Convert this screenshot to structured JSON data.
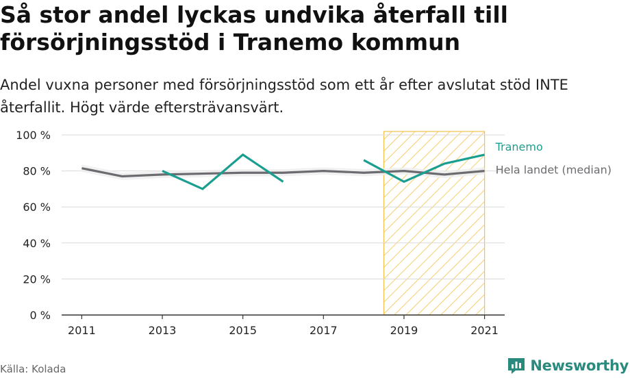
{
  "title": "Så stor andel lyckas undvika återfall till försörjningsstöd i Tranemo kommun",
  "subtitle": "Andel vuxna personer med försörjningsstöd som ett år efter avslutat stöd INTE återfallit. Högt värde eftersträvansvärt.",
  "source": "Källa: Kolada",
  "brand": {
    "name": "Newsworthy",
    "icon": "newsworthy-logo-icon"
  },
  "colors": {
    "tranemo": "#1a9e8f",
    "median": "#6b6b70",
    "highlight_fill": "#f5c04a",
    "grid": "#d9d9d9",
    "brand": "#2a8a7e"
  },
  "chart_data": {
    "type": "line",
    "x": [
      2011,
      2012,
      2013,
      2014,
      2015,
      2016,
      2017,
      2018,
      2019,
      2020,
      2021
    ],
    "xticks": [
      2011,
      2013,
      2015,
      2017,
      2019,
      2021
    ],
    "xticklabels": [
      "2011",
      "2013",
      "2015",
      "2017",
      "2019",
      "2021"
    ],
    "yticks": [
      0,
      20,
      40,
      60,
      80,
      100
    ],
    "yticklabels": [
      "0 %",
      "20 %",
      "40 %",
      "60 %",
      "80 %",
      "100 %"
    ],
    "ylim": [
      0,
      100
    ],
    "xlim": [
      2010.5,
      2021.5
    ],
    "grid": true,
    "series": [
      {
        "name": "Tranemo",
        "color": "#1a9e8f",
        "values": [
          null,
          null,
          80,
          70,
          89,
          74,
          null,
          86,
          74,
          84,
          89
        ]
      },
      {
        "name": "Hela landet (median)",
        "color": "#6b6b70",
        "values": [
          81.5,
          77,
          78,
          78.5,
          79,
          79,
          80,
          79,
          80,
          78,
          80
        ]
      }
    ],
    "highlight": {
      "from": 2018.5,
      "to": 2021,
      "pattern": "diagonal hatch"
    }
  }
}
